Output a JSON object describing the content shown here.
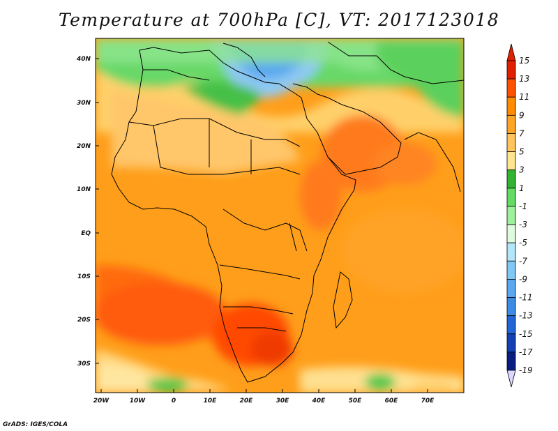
{
  "title": "Temperature at 700hPa [C], VT: 2017123018",
  "credit": "GrADS: IGES/COLA",
  "map": {
    "lat_labels": [
      "40N",
      "30N",
      "20N",
      "10N",
      "EQ",
      "10S",
      "20S",
      "30S"
    ],
    "lon_labels": [
      "20W",
      "10W",
      "0",
      "10E",
      "20E",
      "30E",
      "40E",
      "50E",
      "60E",
      "70E"
    ]
  },
  "colorbar": {
    "labels": [
      "15",
      "13",
      "11",
      "9",
      "7",
      "5",
      "3",
      "1",
      "-1",
      "-3",
      "-5",
      "-7",
      "-9",
      "-11",
      "-13",
      "-15",
      "-17",
      "-19"
    ],
    "colors": [
      "#e02000",
      "#ff5000",
      "#ff8c00",
      "#ffa526",
      "#ffc45c",
      "#ffe590",
      "#32b432",
      "#64dc64",
      "#9ef09e",
      "#dffcdf",
      "#b4e6fa",
      "#82c8f5",
      "#5aa8f0",
      "#3c8ce6",
      "#2364d7",
      "#1440b4",
      "#0a1e82"
    ]
  }
}
